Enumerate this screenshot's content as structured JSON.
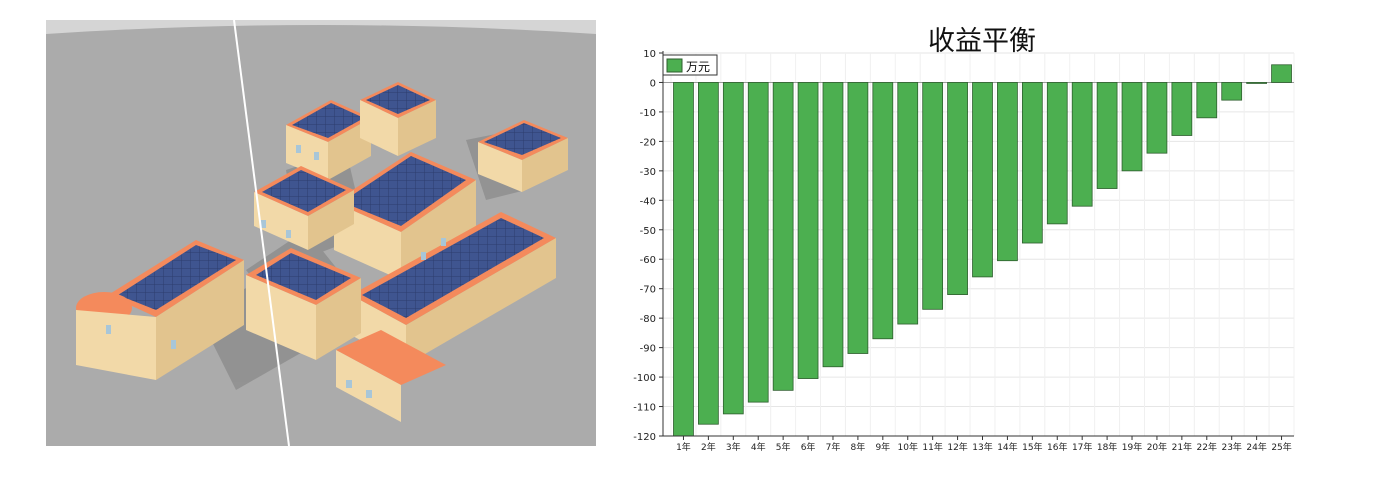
{
  "scene": {
    "colors": {
      "ground": "#ababab",
      "sky_arc": "#d5d5d5",
      "wall": "#f2d9a8",
      "wall_shade": "#e2c48e",
      "roof": "#f48a5c",
      "panel": "#3f5590",
      "panel_grid": "#2c3d6e",
      "window": "#a8c6d8",
      "shadow": "#8e8e8e"
    }
  },
  "chart_data": {
    "type": "bar",
    "title": "收益平衡",
    "legend": [
      "万元"
    ],
    "legend_position": "top-left",
    "grid": true,
    "bar_color": "#4caf50",
    "bar_border": "#2e5e2e",
    "ylim": [
      -120,
      10
    ],
    "yticks": [
      10,
      0,
      -10,
      -20,
      -30,
      -40,
      -50,
      -60,
      -70,
      -80,
      -90,
      -100,
      -110,
      -120
    ],
    "categories": [
      "1年",
      "2年",
      "3年",
      "4年",
      "5年",
      "6年",
      "7年",
      "8年",
      "9年",
      "10年",
      "11年",
      "12年",
      "13年",
      "14年",
      "15年",
      "16年",
      "17年",
      "18年",
      "19年",
      "20年",
      "21年",
      "22年",
      "23年",
      "24年",
      "25年"
    ],
    "series": [
      {
        "name": "万元",
        "values": [
          -120,
          -116,
          -112.5,
          -108.5,
          -104.5,
          -100.5,
          -96.5,
          -92,
          -87,
          -82,
          -77,
          -72,
          -66,
          -60.5,
          -54.5,
          -48,
          -42,
          -36,
          -30,
          -24,
          -18,
          -12,
          -6,
          0,
          6
        ]
      }
    ]
  }
}
